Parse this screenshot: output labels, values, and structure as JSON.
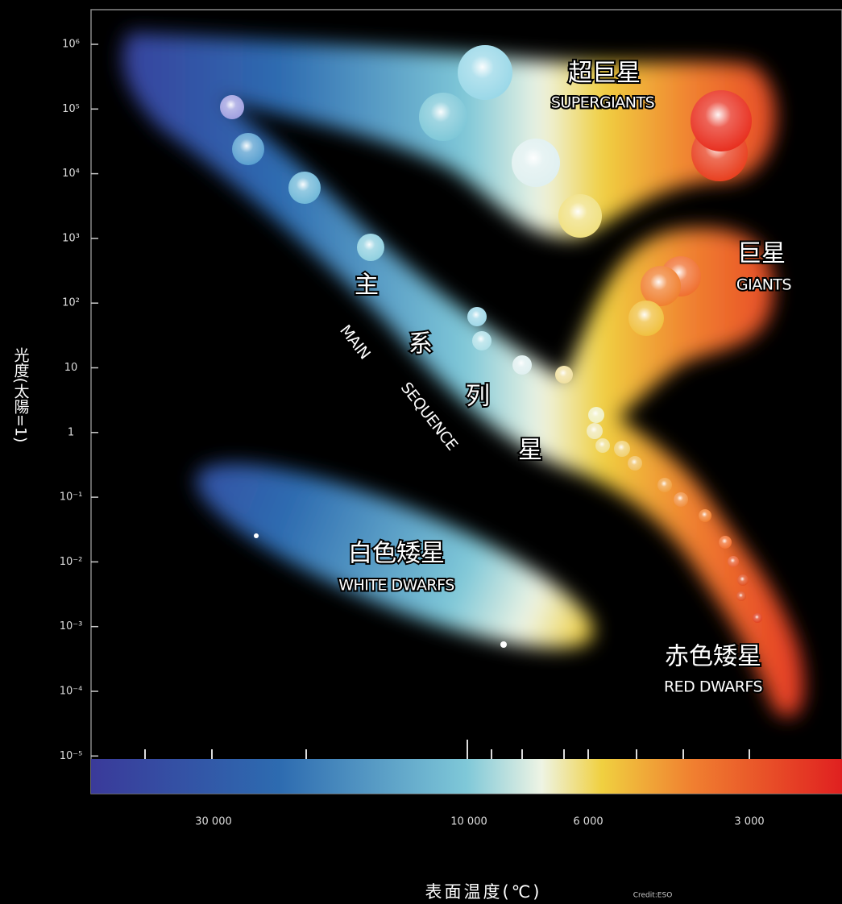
{
  "y_axis": {
    "title": "光度(太陽=1)",
    "ticks": [
      "10⁶",
      "10⁵",
      "10⁴",
      "10³",
      "10²",
      "10",
      "1",
      "10⁻¹",
      "10⁻²",
      "10⁻³",
      "10⁻⁴",
      "10⁻⁵"
    ]
  },
  "x_axis": {
    "title": "表面温度(℃)",
    "ticks": [
      "30 000",
      "10 000",
      "6 000",
      "3 000"
    ]
  },
  "credit": "Credit:ESO",
  "regions": [
    {
      "label": "超巨星",
      "english": "SUPERGIANTS"
    },
    {
      "label": "巨星",
      "english": "GIANTS"
    },
    {
      "label": "白色矮星",
      "english": "WHITE DWARFS"
    },
    {
      "label": "赤色矮星",
      "english": "RED DWARFS"
    }
  ],
  "main_sequence": {
    "chars": [
      "主",
      "系",
      "列",
      "星"
    ],
    "english": [
      "MAIN",
      "SEQUENCE"
    ]
  }
}
